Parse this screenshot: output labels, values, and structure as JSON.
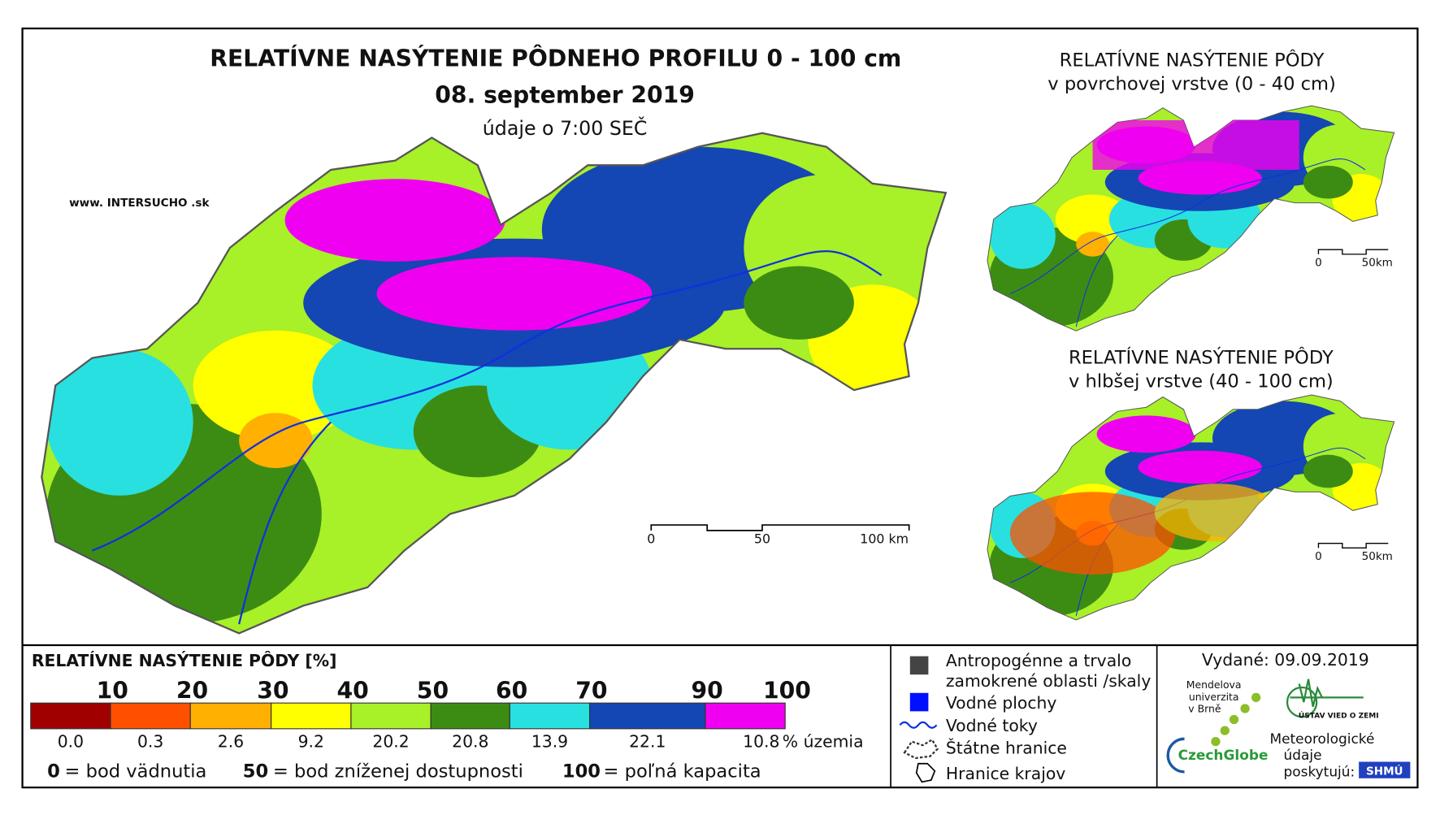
{
  "main_map": {
    "title": "RELATÍVNE NASÝTENIE PÔDNEHO PROFILU 0 - 100 cm",
    "date": "08. september 2019",
    "time_note": "údaje o 7:00 SEČ",
    "website": "www. INTERSUCHO .sk",
    "scale": [
      "0",
      "50",
      "100 km"
    ]
  },
  "inset_top": {
    "title": "RELATÍVNE NASÝTENIE PÔDY",
    "subtitle": "v povrchovej vrstve (0 - 40 cm)",
    "scale": [
      "0",
      "50km"
    ]
  },
  "inset_bottom": {
    "title": "RELATÍVNE NASÝTENIE PÔDY",
    "subtitle": "v hlbšej vrstve (40 - 100 cm)",
    "scale": [
      "0",
      "50km"
    ]
  },
  "legend": {
    "title": "RELATÍVNE NASÝTENIE PÔDY [%]",
    "thresholds": [
      "10",
      "20",
      "30",
      "40",
      "50",
      "60",
      "70",
      "90",
      "100"
    ],
    "colors": [
      "#a00000",
      "#ff5000",
      "#ffb000",
      "#ffff00",
      "#a8f028",
      "#3c8c14",
      "#28e0e0",
      "#1446b4",
      "#f000f0"
    ],
    "shares": [
      "0.0",
      "0.3",
      "2.6",
      "9.2",
      "20.2",
      "20.8",
      "13.9",
      "22.1",
      "10.8"
    ],
    "unit": "% územia",
    "notes": [
      {
        "key": "0",
        "text": "= bod vädnutia"
      },
      {
        "key": "50",
        "text": "= bod zníženej dostupnosti"
      },
      {
        "key": "100",
        "text": "= poľná kapacita"
      }
    ]
  },
  "map_key": {
    "anthropogenic": [
      "Antropogénne a trvalo",
      "zamokrené oblasti /skaly"
    ],
    "water_bodies": "Vodné plochy",
    "rivers": "Vodné toky",
    "state_border": "Štátne hranice",
    "regions": "Hranice krajov"
  },
  "issued": "Vydané: 09.09.2019",
  "logos": {
    "mendel": [
      "Mendelova",
      "univerzita",
      "v Brně"
    ],
    "czechglobe": "CzechGlobe",
    "uvz": "ÚSTAV VIED O ZEMI",
    "providers": [
      "Meteorologické",
      "údaje",
      "poskytujú:"
    ],
    "shmu": "SHMÚ"
  }
}
